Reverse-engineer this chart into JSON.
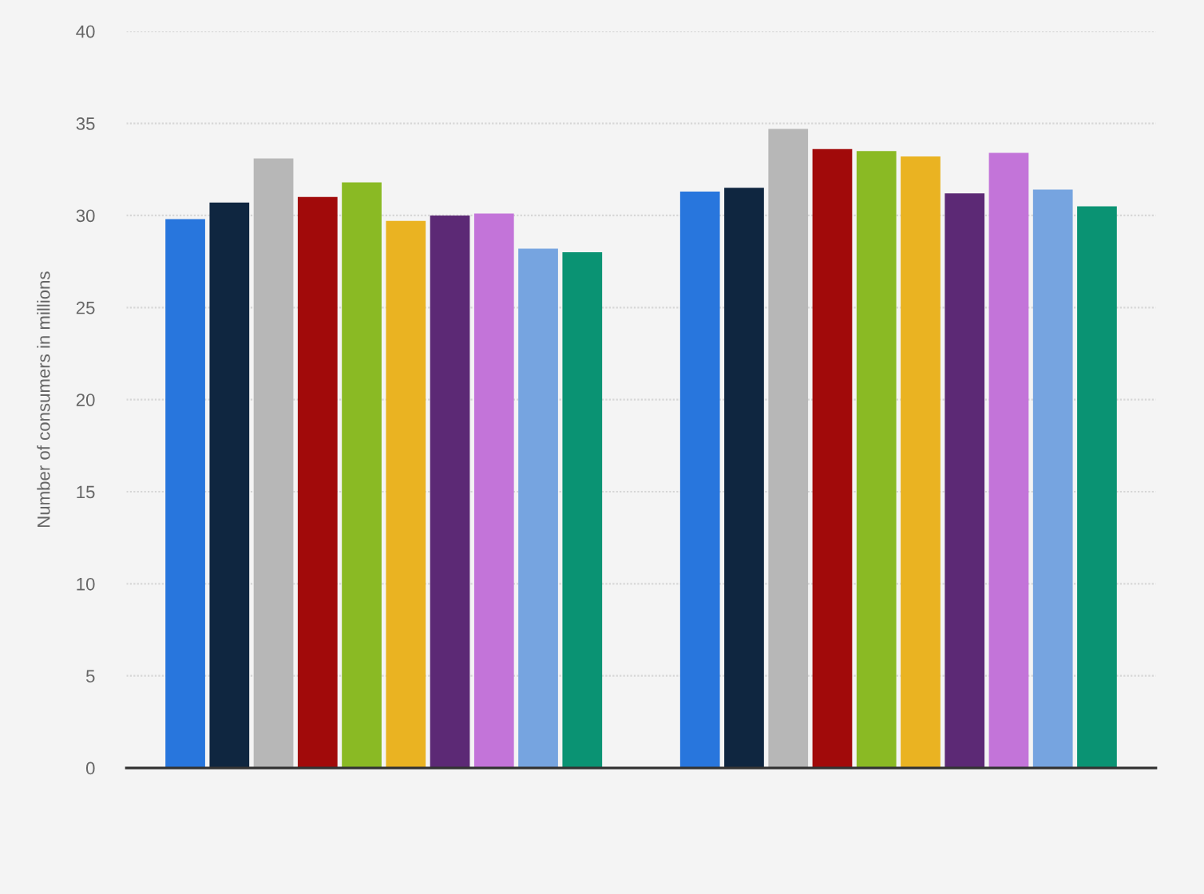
{
  "chart_data": {
    "type": "bar",
    "ylabel": "Number of consumers in millions",
    "categories": [
      null,
      null
    ],
    "series": [
      {
        "color": "#2876dd",
        "values": [
          29.8,
          31.3
        ]
      },
      {
        "color": "#0f2640",
        "values": [
          30.7,
          31.5
        ]
      },
      {
        "color": "#b7b7b7",
        "values": [
          33.1,
          34.7
        ]
      },
      {
        "color": "#a10a0a",
        "values": [
          31.0,
          33.6
        ]
      },
      {
        "color": "#8aba24",
        "values": [
          31.8,
          33.5
        ]
      },
      {
        "color": "#eab322",
        "values": [
          29.7,
          33.2
        ]
      },
      {
        "color": "#5c2975",
        "values": [
          30.0,
          31.2
        ]
      },
      {
        "color": "#c374d9",
        "values": [
          30.1,
          33.4
        ]
      },
      {
        "color": "#76a4e0",
        "values": [
          28.2,
          31.4
        ]
      },
      {
        "color": "#0a9373",
        "values": [
          28.0,
          30.5
        ]
      }
    ],
    "ylim": [
      0,
      40
    ],
    "yticks": [
      0,
      5,
      10,
      15,
      20,
      25,
      30,
      35,
      40
    ],
    "grid": "y",
    "tick_labels": "y"
  }
}
